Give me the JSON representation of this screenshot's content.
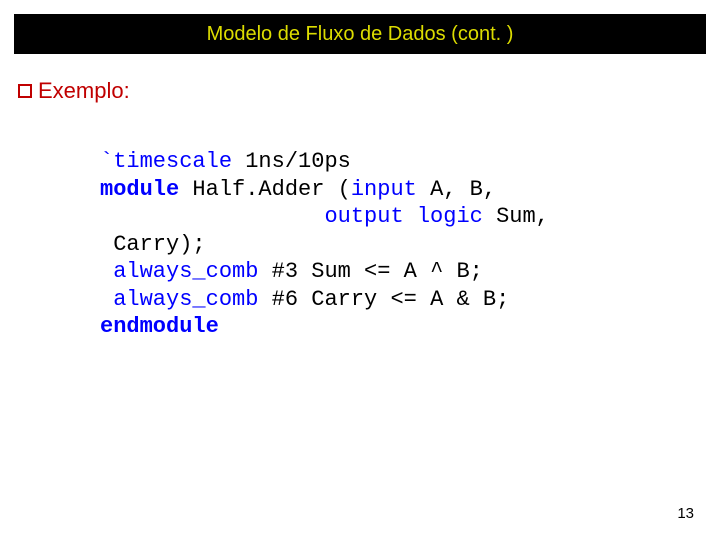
{
  "title": "Modelo de Fluxo de Dados (cont. )",
  "bullet": {
    "label": "Exemplo:"
  },
  "code": {
    "l1a": "`timescale",
    "l1b": " 1ns/10ps",
    "l2a": "module ",
    "l2b": "Half.Adder (",
    "l2c": "input",
    "l2d": " A, B,",
    "l3a": "                 ",
    "l3b": "output",
    "l3c": " ",
    "l3d": "logic",
    "l3e": " Sum,",
    "l4": " Carry);",
    "l5a": " ",
    "l5b": "always_comb",
    "l5c": " #3 Sum <= A ^ B;",
    "l6a": " ",
    "l6b": "always_comb",
    "l6c": " #6 Carry <= A & B;",
    "l7": "endmodule"
  },
  "pageNumber": "13",
  "colors": {
    "titleBg": "#000000",
    "titleFg": "#dcdc00",
    "bulletColor": "#c00000",
    "kwColor": "#0000ff",
    "textColor": "#000000",
    "pageBg": "#ffffff"
  },
  "fonts": {
    "titleSize": 20,
    "bulletSize": 22,
    "codeSize": 22,
    "pageNumSize": 15
  }
}
